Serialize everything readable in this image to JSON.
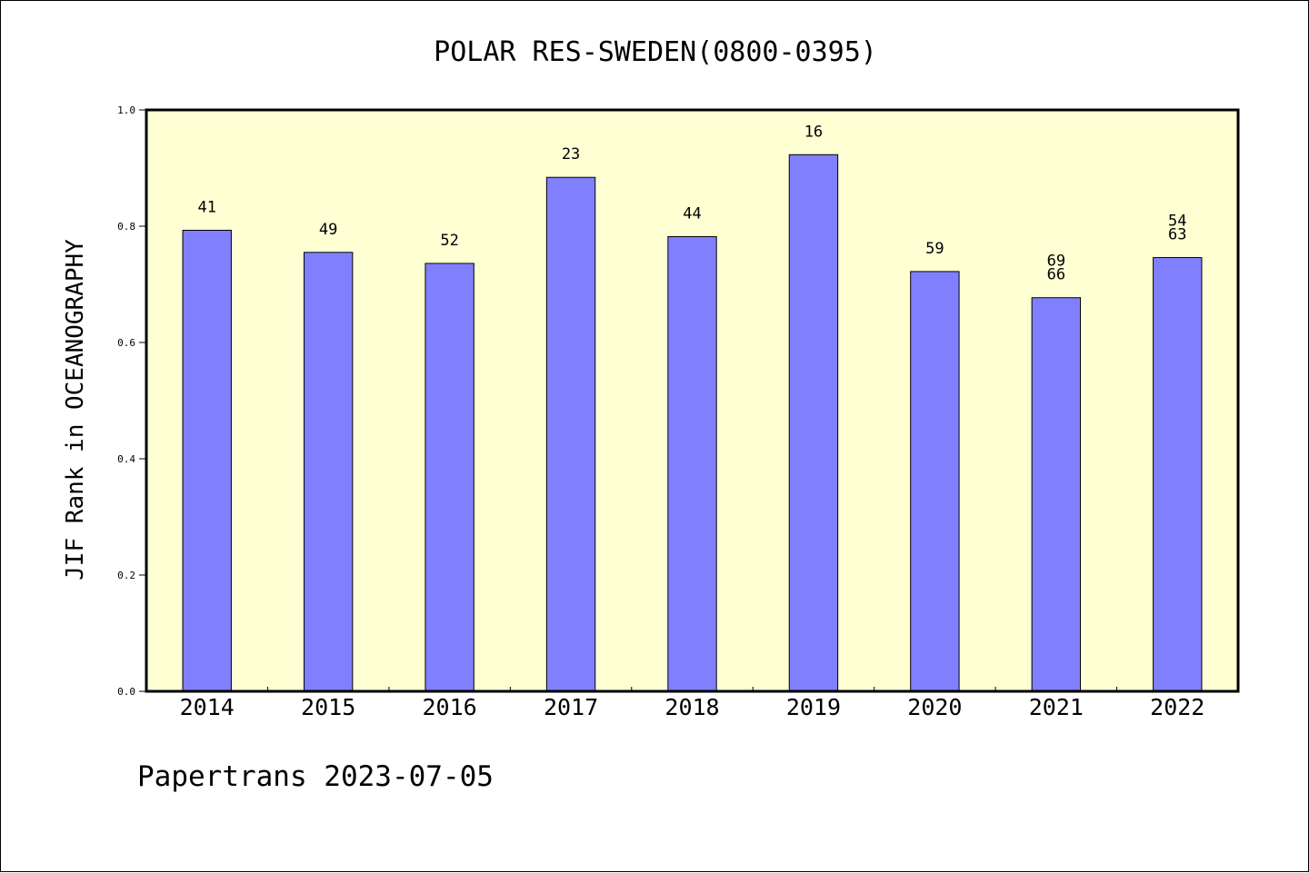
{
  "chart_data": {
    "type": "bar",
    "title": "POLAR RES-SWEDEN(0800-0395)",
    "xlabel": "",
    "ylabel": "JIF Rank in OCEANOGRAPHY",
    "categories": [
      "2014",
      "2015",
      "2016",
      "2017",
      "2018",
      "2019",
      "2020",
      "2021",
      "2022"
    ],
    "values": [
      0.793,
      0.755,
      0.736,
      0.884,
      0.782,
      0.923,
      0.722,
      0.677,
      0.746
    ],
    "bar_labels": [
      [
        "41"
      ],
      [
        "49"
      ],
      [
        "52"
      ],
      [
        "23"
      ],
      [
        "44"
      ],
      [
        "16"
      ],
      [
        "59"
      ],
      [
        "69",
        "66"
      ],
      [
        "54",
        "63"
      ]
    ],
    "ylim": [
      0,
      1.0
    ],
    "yticks": [
      "0.0",
      "0.2",
      "0.4",
      "0.6",
      "0.8",
      "1.0"
    ],
    "grid": false,
    "colors": {
      "bar": "#8080ff",
      "plot_bg": "#ffffd4",
      "axis": "#000000"
    }
  },
  "footer": {
    "text": "Papertrans 2023-07-05"
  }
}
